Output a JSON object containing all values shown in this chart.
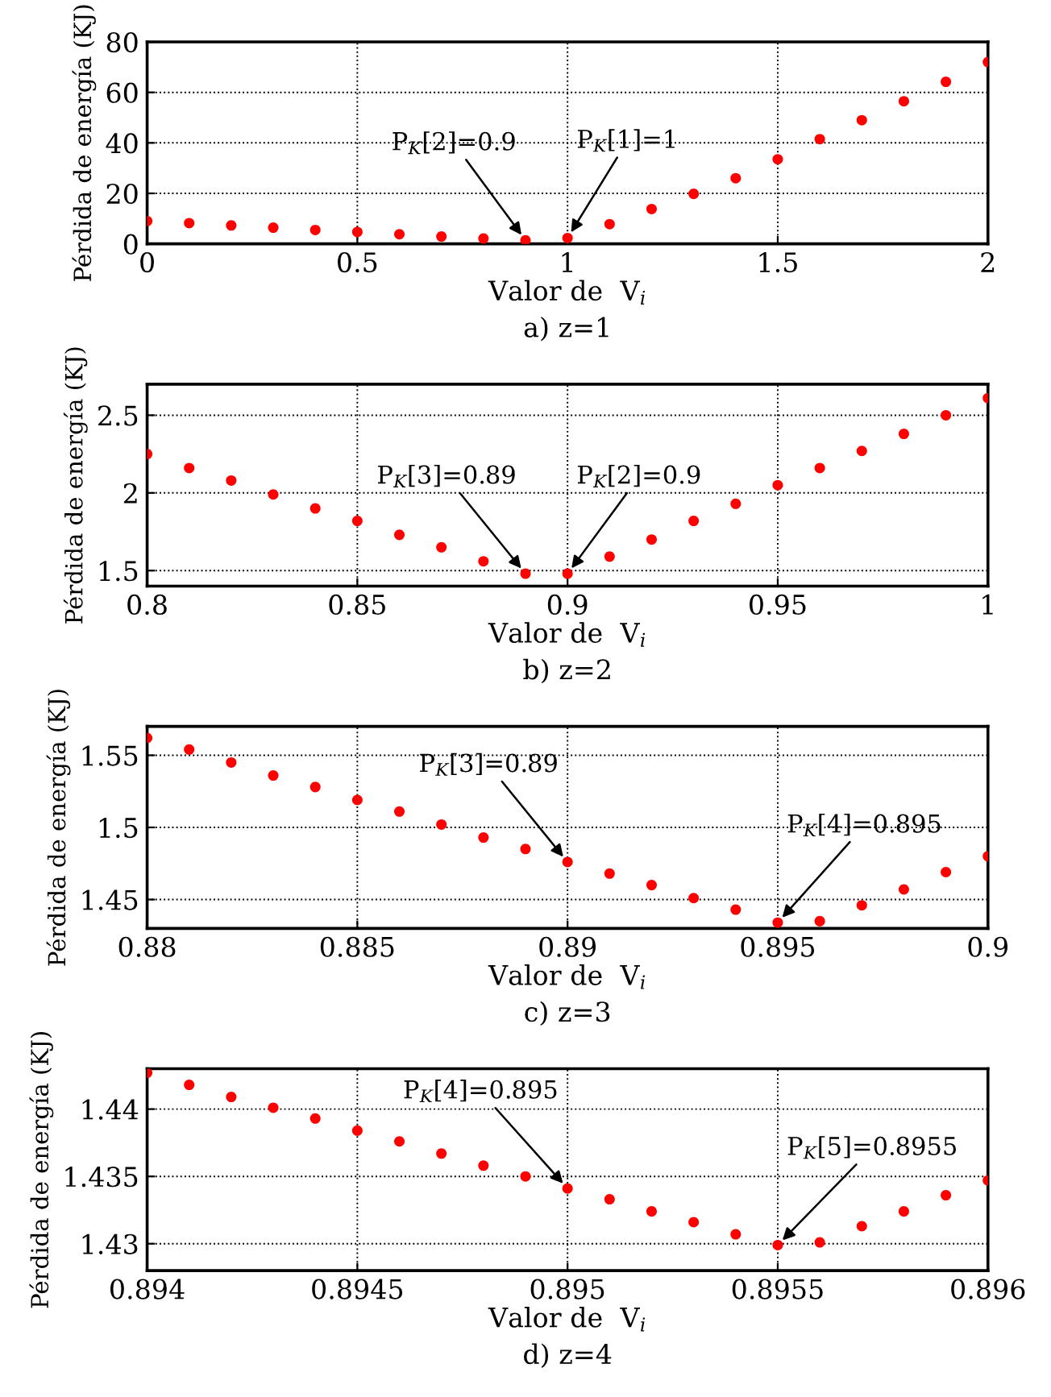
{
  "chart_data": [
    {
      "type": "scatter",
      "title": "a) z=1",
      "xlabel": "Valor de  V$_{i}$",
      "ylabel": "Pérdida de energía (KJ)",
      "xlim": [
        0,
        2
      ],
      "ylim": [
        0,
        80
      ],
      "xticks": [
        0,
        0.5,
        1,
        1.5,
        2
      ],
      "yticks": [
        0,
        20,
        40,
        60,
        80
      ],
      "grid": true,
      "marker": "circle",
      "x": [
        0,
        0.1,
        0.2,
        0.3,
        0.4,
        0.5,
        0.6,
        0.7,
        0.8,
        0.9,
        1.0,
        1.1,
        1.2,
        1.3,
        1.4,
        1.5,
        1.6,
        1.7,
        1.8,
        1.9,
        2.0
      ],
      "series": [
        {
          "color": "#ff0000",
          "values": [
            9,
            8.2,
            7.3,
            6.4,
            5.5,
            4.7,
            3.8,
            2.9,
            2.1,
            1.4,
            2.3,
            7.8,
            13.8,
            19.8,
            26,
            33.5,
            41.5,
            49,
            56.5,
            64.2,
            72
          ]
        }
      ],
      "annotations": [
        {
          "text": "P$_{K}$[2]=0.9",
          "x": 0.9,
          "y": 1.4
        },
        {
          "text": "P$_{K}$[1]=1",
          "x": 1.0,
          "y": 2.3
        }
      ]
    },
    {
      "type": "scatter",
      "title": "b) z=2",
      "xlabel": "Valor de  V$_{i}$",
      "ylabel": "Pérdida de energía (KJ)",
      "xlim": [
        0.8,
        1
      ],
      "ylim": [
        1.4,
        2.7
      ],
      "xticks": [
        0.8,
        0.85,
        0.9,
        0.95,
        1
      ],
      "yticks": [
        1.5,
        2,
        2.5
      ],
      "grid": true,
      "marker": "circle",
      "x": [
        0.8,
        0.81,
        0.82,
        0.83,
        0.84,
        0.85,
        0.86,
        0.87,
        0.88,
        0.89,
        0.9,
        0.91,
        0.92,
        0.93,
        0.94,
        0.95,
        0.96,
        0.97,
        0.98,
        0.99,
        1.0
      ],
      "series": [
        {
          "color": "#ff0000",
          "values": [
            2.25,
            2.16,
            2.08,
            1.99,
            1.9,
            1.82,
            1.73,
            1.65,
            1.56,
            1.48,
            1.48,
            1.59,
            1.7,
            1.82,
            1.93,
            2.05,
            2.16,
            2.27,
            2.38,
            2.5,
            2.61
          ]
        }
      ],
      "annotations": [
        {
          "text": "P$_{K}$[3]=0.89",
          "x": 0.89,
          "y": 1.48
        },
        {
          "text": "P$_{K}$[2]=0.9",
          "x": 0.9,
          "y": 1.48
        }
      ]
    },
    {
      "type": "scatter",
      "title": "c) z=3",
      "xlabel": "Valor de  V$_{i}$",
      "ylabel": "Pérdida de energía (KJ)",
      "xlim": [
        0.88,
        0.9
      ],
      "ylim": [
        1.43,
        1.57
      ],
      "xticks": [
        0.88,
        0.885,
        0.89,
        0.895,
        0.9
      ],
      "yticks": [
        1.45,
        1.5,
        1.55
      ],
      "grid": true,
      "marker": "circle",
      "x": [
        0.88,
        0.881,
        0.882,
        0.883,
        0.884,
        0.885,
        0.886,
        0.887,
        0.888,
        0.889,
        0.89,
        0.891,
        0.892,
        0.893,
        0.894,
        0.895,
        0.896,
        0.897,
        0.898,
        0.899,
        0.9
      ],
      "series": [
        {
          "color": "#ff0000",
          "values": [
            1.562,
            1.554,
            1.545,
            1.536,
            1.528,
            1.519,
            1.511,
            1.502,
            1.493,
            1.485,
            1.476,
            1.468,
            1.46,
            1.451,
            1.443,
            1.434,
            1.435,
            1.446,
            1.457,
            1.469,
            1.48
          ]
        }
      ],
      "annotations": [
        {
          "text": "P$_{K}$[3]=0.89",
          "x": 0.89,
          "y": 1.476
        },
        {
          "text": "P$_{K}$[4]=0.895",
          "x": 0.895,
          "y": 1.434
        }
      ]
    },
    {
      "type": "scatter",
      "title": "d) z=4",
      "xlabel": "Valor de  V$_{i}$",
      "ylabel": "Pérdida de energía (KJ)",
      "xlim": [
        0.894,
        0.896
      ],
      "ylim": [
        1.428,
        1.443
      ],
      "xticks": [
        0.894,
        0.8945,
        0.895,
        0.8955,
        0.896
      ],
      "yticks": [
        1.43,
        1.435,
        1.44
      ],
      "grid": true,
      "marker": "circle",
      "x": [
        0.894,
        0.8941,
        0.8942,
        0.8943,
        0.8944,
        0.8945,
        0.8946,
        0.8947,
        0.8948,
        0.8949,
        0.895,
        0.8951,
        0.8952,
        0.8953,
        0.8954,
        0.8955,
        0.8956,
        0.8957,
        0.8958,
        0.8959,
        0.896
      ],
      "series": [
        {
          "color": "#ff0000",
          "values": [
            1.4427,
            1.4418,
            1.4409,
            1.4401,
            1.4393,
            1.4384,
            1.4376,
            1.4367,
            1.4358,
            1.435,
            1.4341,
            1.4333,
            1.4324,
            1.4316,
            1.4307,
            1.4299,
            1.4301,
            1.4313,
            1.4324,
            1.4336,
            1.4347
          ]
        }
      ],
      "annotations": [
        {
          "text": "P$_{K}$[4]=0.895",
          "x": 0.895,
          "y": 1.4341
        },
        {
          "text": "P$_{K}$[5]=0.8955",
          "x": 0.8955,
          "y": 1.4299
        }
      ]
    }
  ]
}
